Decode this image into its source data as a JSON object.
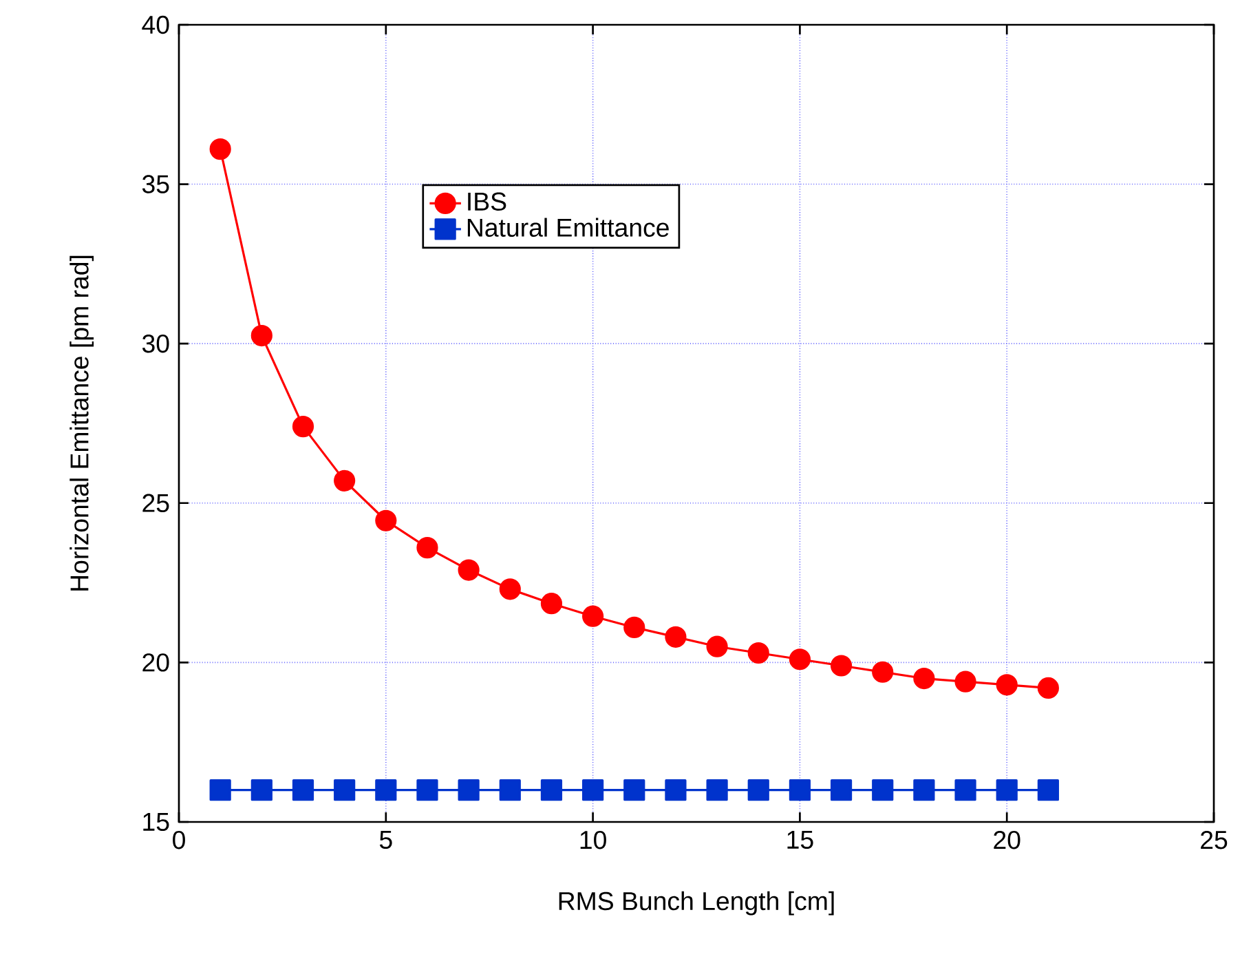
{
  "chart_data": {
    "type": "line",
    "xlabel": "RMS Bunch Length [cm]",
    "ylabel": "Horizontal Emittance [pm rad]",
    "x": [
      1,
      2,
      3,
      4,
      5,
      6,
      7,
      8,
      9,
      10,
      11,
      12,
      13,
      14,
      15,
      16,
      17,
      18,
      19,
      20,
      21
    ],
    "series": [
      {
        "name": "IBS",
        "color": "#ff0000",
        "marker": "circle",
        "values": [
          36.1,
          30.25,
          27.4,
          25.7,
          24.45,
          23.6,
          22.9,
          22.3,
          21.85,
          21.45,
          21.1,
          20.8,
          20.5,
          20.3,
          20.1,
          19.9,
          19.7,
          19.5,
          19.4,
          19.3,
          19.2
        ]
      },
      {
        "name": "Natural Emittance",
        "color": "#0033cc",
        "marker": "square",
        "values": [
          16,
          16,
          16,
          16,
          16,
          16,
          16,
          16,
          16,
          16,
          16,
          16,
          16,
          16,
          16,
          16,
          16,
          16,
          16,
          16,
          16
        ]
      }
    ],
    "xlim": [
      0,
      25
    ],
    "ylim": [
      15,
      40
    ],
    "xticks": [
      0,
      5,
      10,
      15,
      20,
      25
    ],
    "yticks": [
      15,
      20,
      25,
      30,
      35,
      40
    ],
    "grid": true,
    "legend": "top",
    "line_style": "solid"
  }
}
